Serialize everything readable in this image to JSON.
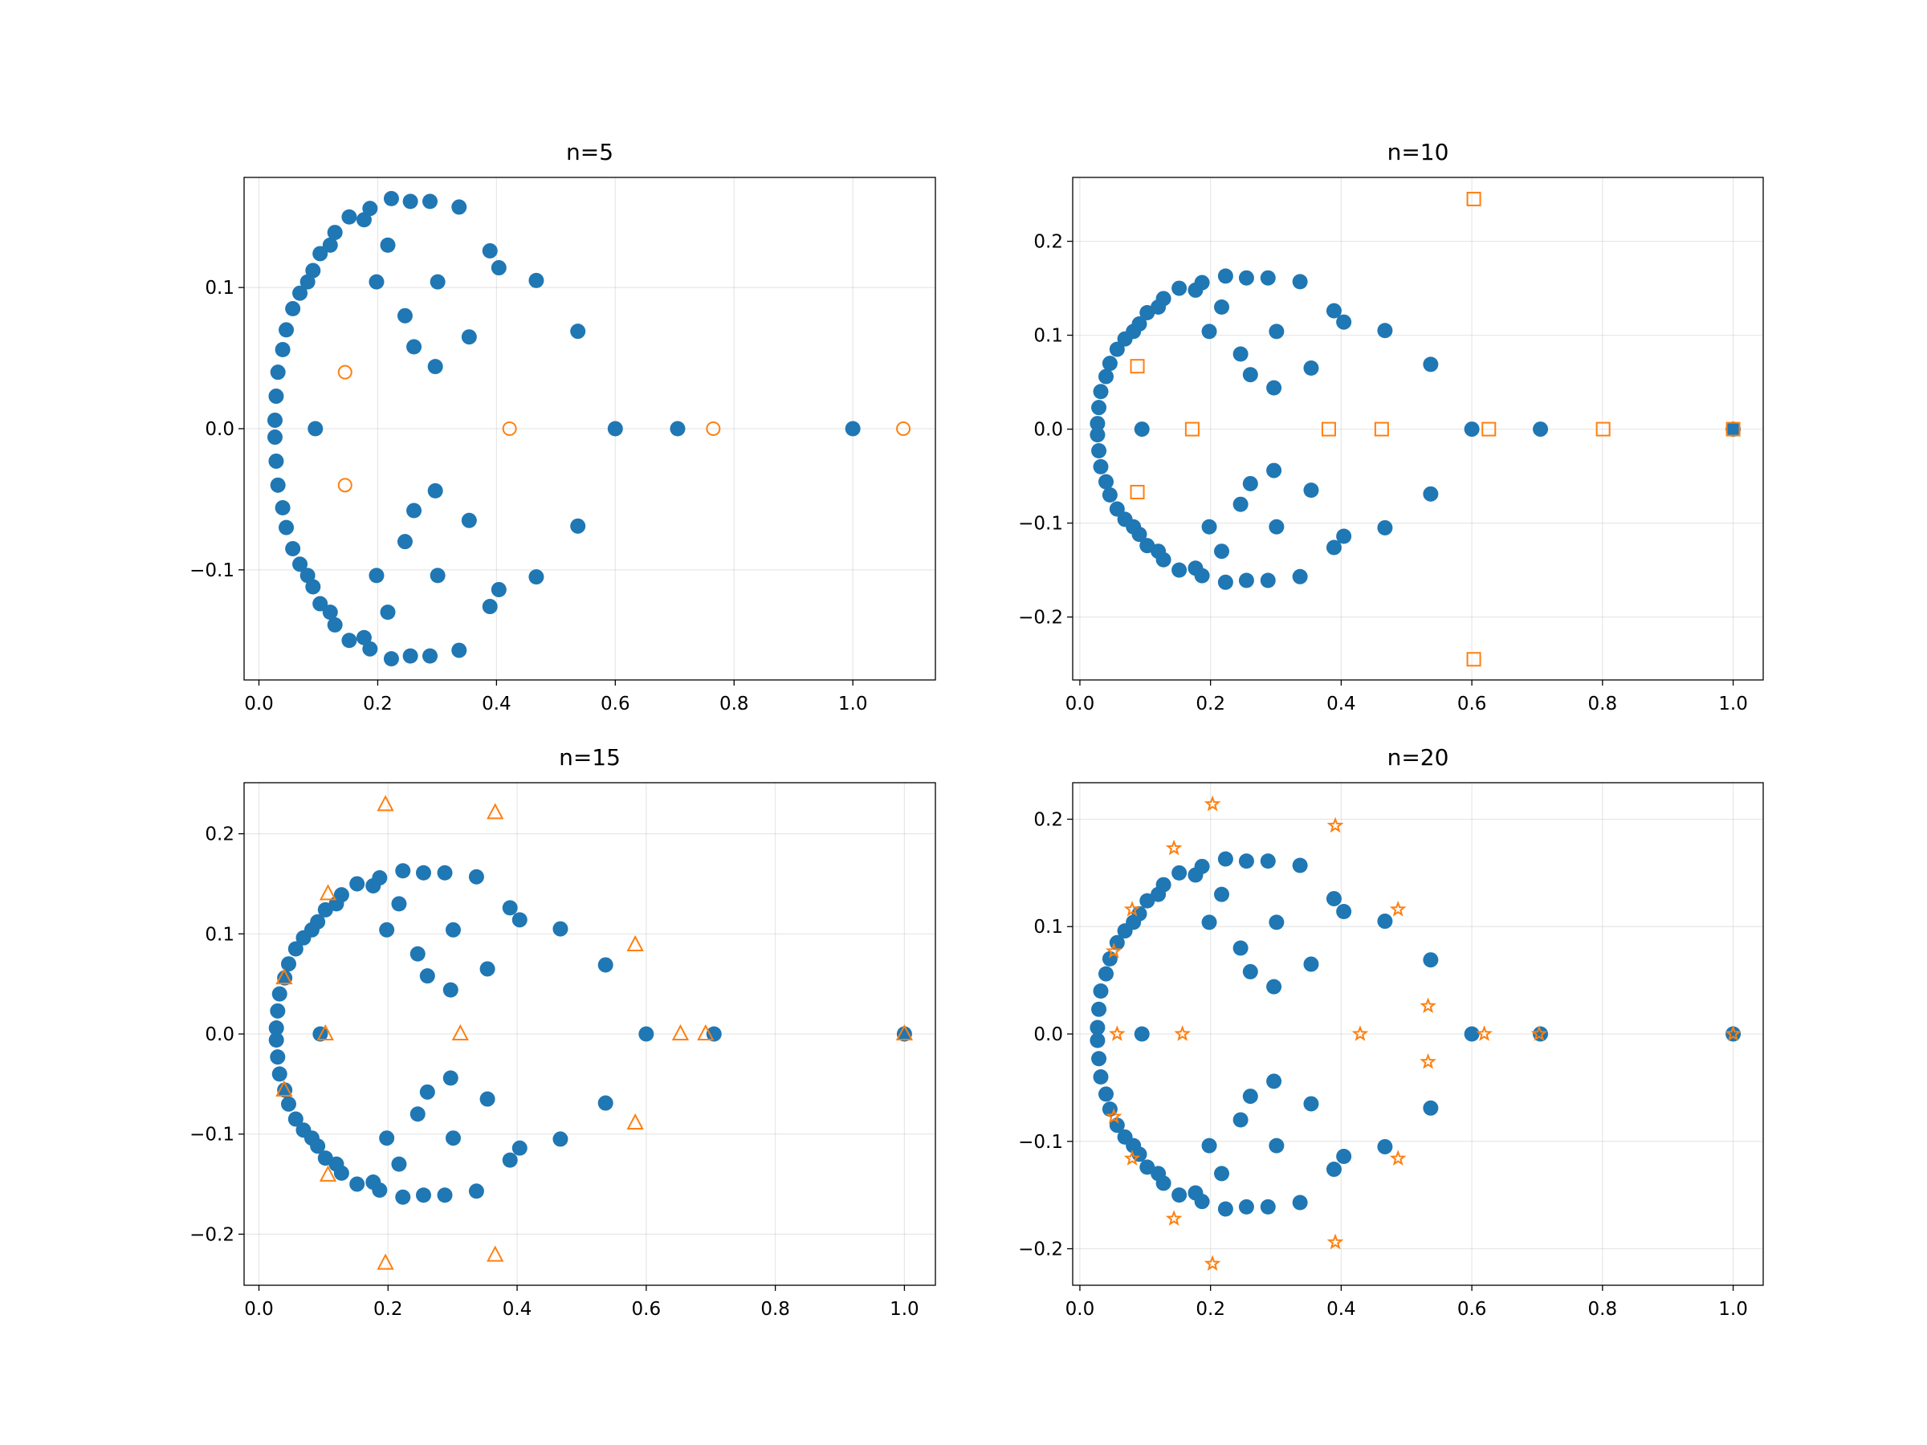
{
  "chart_data": [
    {
      "type": "scatter",
      "title": "n=5",
      "xlim": [
        -0.025,
        1.139
      ],
      "ylim": [
        -0.178,
        0.178
      ],
      "xticks": [
        {
          "value": 0,
          "label": "0.0"
        },
        0.2,
        0.4,
        0.6,
        0.8,
        {
          "value": 1,
          "label": "1.0"
        }
      ],
      "yticks": [
        {
          "value": -0.1,
          "label": "−0.1"
        },
        {
          "value": 0,
          "label": "0.0"
        },
        0.1
      ],
      "grid": true,
      "series": [
        {
          "color": "#1f77b4",
          "marker": "circle",
          "filled": true,
          "x": [
            0.027,
            0.029,
            0.032,
            0.04,
            0.046,
            0.057,
            0.069,
            0.082,
            0.091,
            0.103,
            0.12,
            0.128,
            0.152,
            0.177,
            0.187,
            0.223,
            0.255,
            0.288,
            0.337,
            0.198,
            0.217,
            0.301,
            0.246,
            0.261,
            0.297,
            0.354,
            0.389,
            0.404,
            0.467,
            0.537,
            0.027,
            0.029,
            0.032,
            0.04,
            0.046,
            0.057,
            0.069,
            0.082,
            0.091,
            0.103,
            0.12,
            0.128,
            0.152,
            0.177,
            0.187,
            0.223,
            0.255,
            0.288,
            0.337,
            0.198,
            0.217,
            0.301,
            0.246,
            0.261,
            0.297,
            0.354,
            0.389,
            0.404,
            0.467,
            0.537,
            0.095,
            0.6,
            0.705,
            1.0
          ],
          "values": [
            0.006,
            0.023,
            0.04,
            0.056,
            0.07,
            0.085,
            0.096,
            0.104,
            0.112,
            0.124,
            0.13,
            0.139,
            0.15,
            0.148,
            0.156,
            0.163,
            0.161,
            0.161,
            0.157,
            0.104,
            0.13,
            0.104,
            0.08,
            0.058,
            0.044,
            0.065,
            0.126,
            0.114,
            0.105,
            0.069,
            -0.006,
            -0.023,
            -0.04,
            -0.056,
            -0.07,
            -0.085,
            -0.096,
            -0.104,
            -0.112,
            -0.124,
            -0.13,
            -0.139,
            -0.15,
            -0.148,
            -0.156,
            -0.163,
            -0.161,
            -0.161,
            -0.157,
            -0.104,
            -0.13,
            -0.104,
            -0.08,
            -0.058,
            -0.044,
            -0.065,
            -0.126,
            -0.114,
            -0.105,
            -0.069,
            0,
            0,
            0,
            0
          ]
        },
        {
          "color": "#ff7f0e",
          "marker": "circle",
          "filled": false,
          "x": [
            0.145,
            0.145,
            0.422,
            0.765,
            1.085
          ],
          "values": [
            0.04,
            -0.04,
            0,
            0,
            0
          ]
        }
      ]
    },
    {
      "type": "scatter",
      "title": "n=10",
      "xlim": [
        -0.011,
        1.046
      ],
      "ylim": [
        -0.267,
        0.268
      ],
      "xticks": [
        {
          "value": 0,
          "label": "0.0"
        },
        0.2,
        0.4,
        0.6,
        0.8,
        {
          "value": 1,
          "label": "1.0"
        }
      ],
      "yticks": [
        {
          "value": -0.2,
          "label": "−0.2"
        },
        {
          "value": -0.1,
          "label": "−0.1"
        },
        {
          "value": 0,
          "label": "0.0"
        },
        0.1,
        0.2
      ],
      "grid": true,
      "series": [
        {
          "color": "#1f77b4",
          "marker": "circle",
          "filled": true,
          "x": [
            0.027,
            0.029,
            0.032,
            0.04,
            0.046,
            0.057,
            0.069,
            0.082,
            0.091,
            0.103,
            0.12,
            0.128,
            0.152,
            0.177,
            0.187,
            0.223,
            0.255,
            0.288,
            0.337,
            0.198,
            0.217,
            0.301,
            0.246,
            0.261,
            0.297,
            0.354,
            0.389,
            0.404,
            0.467,
            0.537,
            0.027,
            0.029,
            0.032,
            0.04,
            0.046,
            0.057,
            0.069,
            0.082,
            0.091,
            0.103,
            0.12,
            0.128,
            0.152,
            0.177,
            0.187,
            0.223,
            0.255,
            0.288,
            0.337,
            0.198,
            0.217,
            0.301,
            0.246,
            0.261,
            0.297,
            0.354,
            0.389,
            0.404,
            0.467,
            0.537,
            0.095,
            0.6,
            0.705,
            1.0
          ],
          "values": [
            0.006,
            0.023,
            0.04,
            0.056,
            0.07,
            0.085,
            0.096,
            0.104,
            0.112,
            0.124,
            0.13,
            0.139,
            0.15,
            0.148,
            0.156,
            0.163,
            0.161,
            0.161,
            0.157,
            0.104,
            0.13,
            0.104,
            0.08,
            0.058,
            0.044,
            0.065,
            0.126,
            0.114,
            0.105,
            0.069,
            -0.006,
            -0.023,
            -0.04,
            -0.056,
            -0.07,
            -0.085,
            -0.096,
            -0.104,
            -0.112,
            -0.124,
            -0.13,
            -0.139,
            -0.15,
            -0.148,
            -0.156,
            -0.163,
            -0.161,
            -0.161,
            -0.157,
            -0.104,
            -0.13,
            -0.104,
            -0.08,
            -0.058,
            -0.044,
            -0.065,
            -0.126,
            -0.114,
            -0.105,
            -0.069,
            0,
            0,
            0,
            0
          ]
        },
        {
          "color": "#ff7f0e",
          "marker": "square",
          "filled": false,
          "x": [
            0.088,
            0.088,
            0.172,
            0.381,
            0.462,
            0.603,
            0.603,
            0.626,
            0.801,
            1.0
          ],
          "values": [
            0.067,
            -0.067,
            0,
            0,
            0,
            0.245,
            -0.245,
            0,
            0,
            0
          ]
        }
      ]
    },
    {
      "type": "scatter",
      "title": "n=15",
      "xlim": [
        -0.023,
        1.048
      ],
      "ylim": [
        -0.251,
        0.251
      ],
      "xticks": [
        {
          "value": 0,
          "label": "0.0"
        },
        0.2,
        0.4,
        0.6,
        0.8,
        {
          "value": 1,
          "label": "1.0"
        }
      ],
      "yticks": [
        {
          "value": -0.2,
          "label": "−0.2"
        },
        {
          "value": -0.1,
          "label": "−0.1"
        },
        {
          "value": 0,
          "label": "0.0"
        },
        0.1,
        0.2
      ],
      "grid": true,
      "series": [
        {
          "color": "#1f77b4",
          "marker": "circle",
          "filled": true,
          "x": [
            0.027,
            0.029,
            0.032,
            0.04,
            0.046,
            0.057,
            0.069,
            0.082,
            0.091,
            0.103,
            0.12,
            0.128,
            0.152,
            0.177,
            0.187,
            0.223,
            0.255,
            0.288,
            0.337,
            0.198,
            0.217,
            0.301,
            0.246,
            0.261,
            0.297,
            0.354,
            0.389,
            0.404,
            0.467,
            0.537,
            0.027,
            0.029,
            0.032,
            0.04,
            0.046,
            0.057,
            0.069,
            0.082,
            0.091,
            0.103,
            0.12,
            0.128,
            0.152,
            0.177,
            0.187,
            0.223,
            0.255,
            0.288,
            0.337,
            0.198,
            0.217,
            0.301,
            0.246,
            0.261,
            0.297,
            0.354,
            0.389,
            0.404,
            0.467,
            0.537,
            0.095,
            0.6,
            0.705,
            1.0
          ],
          "values": [
            0.006,
            0.023,
            0.04,
            0.056,
            0.07,
            0.085,
            0.096,
            0.104,
            0.112,
            0.124,
            0.13,
            0.139,
            0.15,
            0.148,
            0.156,
            0.163,
            0.161,
            0.161,
            0.157,
            0.104,
            0.13,
            0.104,
            0.08,
            0.058,
            0.044,
            0.065,
            0.126,
            0.114,
            0.105,
            0.069,
            -0.006,
            -0.023,
            -0.04,
            -0.056,
            -0.07,
            -0.085,
            -0.096,
            -0.104,
            -0.112,
            -0.124,
            -0.13,
            -0.139,
            -0.15,
            -0.148,
            -0.156,
            -0.163,
            -0.161,
            -0.161,
            -0.157,
            -0.104,
            -0.13,
            -0.104,
            -0.08,
            -0.058,
            -0.044,
            -0.065,
            -0.126,
            -0.114,
            -0.105,
            -0.069,
            0,
            0,
            0,
            0
          ]
        },
        {
          "color": "#ff7f0e",
          "marker": "triangle",
          "filled": false,
          "x": [
            0.039,
            0.039,
            0.107,
            0.107,
            0.103,
            0.196,
            0.196,
            0.312,
            0.366,
            0.366,
            0.583,
            0.583,
            0.653,
            0.692,
            1.0
          ],
          "values": [
            0.056,
            -0.056,
            0.14,
            -0.141,
            0,
            0.229,
            -0.229,
            0,
            0.221,
            -0.221,
            0.089,
            -0.089,
            0,
            0,
            0
          ]
        }
      ]
    },
    {
      "type": "scatter",
      "title": "n=20",
      "xlim": [
        -0.011,
        1.046
      ],
      "ylim": [
        -0.234,
        0.234
      ],
      "xticks": [
        {
          "value": 0,
          "label": "0.0"
        },
        0.2,
        0.4,
        0.6,
        0.8,
        {
          "value": 1,
          "label": "1.0"
        }
      ],
      "yticks": [
        {
          "value": -0.2,
          "label": "−0.2"
        },
        {
          "value": -0.1,
          "label": "−0.1"
        },
        {
          "value": 0,
          "label": "0.0"
        },
        0.1,
        0.2
      ],
      "grid": true,
      "series": [
        {
          "color": "#1f77b4",
          "marker": "circle",
          "filled": true,
          "x": [
            0.027,
            0.029,
            0.032,
            0.04,
            0.046,
            0.057,
            0.069,
            0.082,
            0.091,
            0.103,
            0.12,
            0.128,
            0.152,
            0.177,
            0.187,
            0.223,
            0.255,
            0.288,
            0.337,
            0.198,
            0.217,
            0.301,
            0.246,
            0.261,
            0.297,
            0.354,
            0.389,
            0.404,
            0.467,
            0.537,
            0.027,
            0.029,
            0.032,
            0.04,
            0.046,
            0.057,
            0.069,
            0.082,
            0.091,
            0.103,
            0.12,
            0.128,
            0.152,
            0.177,
            0.187,
            0.223,
            0.255,
            0.288,
            0.337,
            0.198,
            0.217,
            0.301,
            0.246,
            0.261,
            0.297,
            0.354,
            0.389,
            0.404,
            0.467,
            0.537,
            0.095,
            0.6,
            0.705,
            1.0
          ],
          "values": [
            0.006,
            0.023,
            0.04,
            0.056,
            0.07,
            0.085,
            0.096,
            0.104,
            0.112,
            0.124,
            0.13,
            0.139,
            0.15,
            0.148,
            0.156,
            0.163,
            0.161,
            0.161,
            0.157,
            0.104,
            0.13,
            0.104,
            0.08,
            0.058,
            0.044,
            0.065,
            0.126,
            0.114,
            0.105,
            0.069,
            -0.006,
            -0.023,
            -0.04,
            -0.056,
            -0.07,
            -0.085,
            -0.096,
            -0.104,
            -0.112,
            -0.124,
            -0.13,
            -0.139,
            -0.15,
            -0.148,
            -0.156,
            -0.163,
            -0.161,
            -0.161,
            -0.157,
            -0.104,
            -0.13,
            -0.104,
            -0.08,
            -0.058,
            -0.044,
            -0.065,
            -0.126,
            -0.114,
            -0.105,
            -0.069,
            0,
            0,
            0,
            0
          ]
        },
        {
          "color": "#ff7f0e",
          "marker": "star",
          "filled": false,
          "x": [
            0.052,
            0.052,
            0.057,
            0.08,
            0.08,
            0.144,
            0.144,
            0.157,
            0.203,
            0.203,
            0.391,
            0.391,
            0.429,
            0.487,
            0.487,
            0.533,
            0.533,
            0.619,
            0.703,
            1.0
          ],
          "values": [
            0.077,
            -0.077,
            0,
            0.116,
            -0.116,
            0.173,
            -0.172,
            0,
            0.214,
            -0.214,
            0.194,
            -0.194,
            0,
            0.116,
            -0.116,
            0.026,
            -0.026,
            0,
            0,
            0
          ]
        }
      ]
    }
  ]
}
